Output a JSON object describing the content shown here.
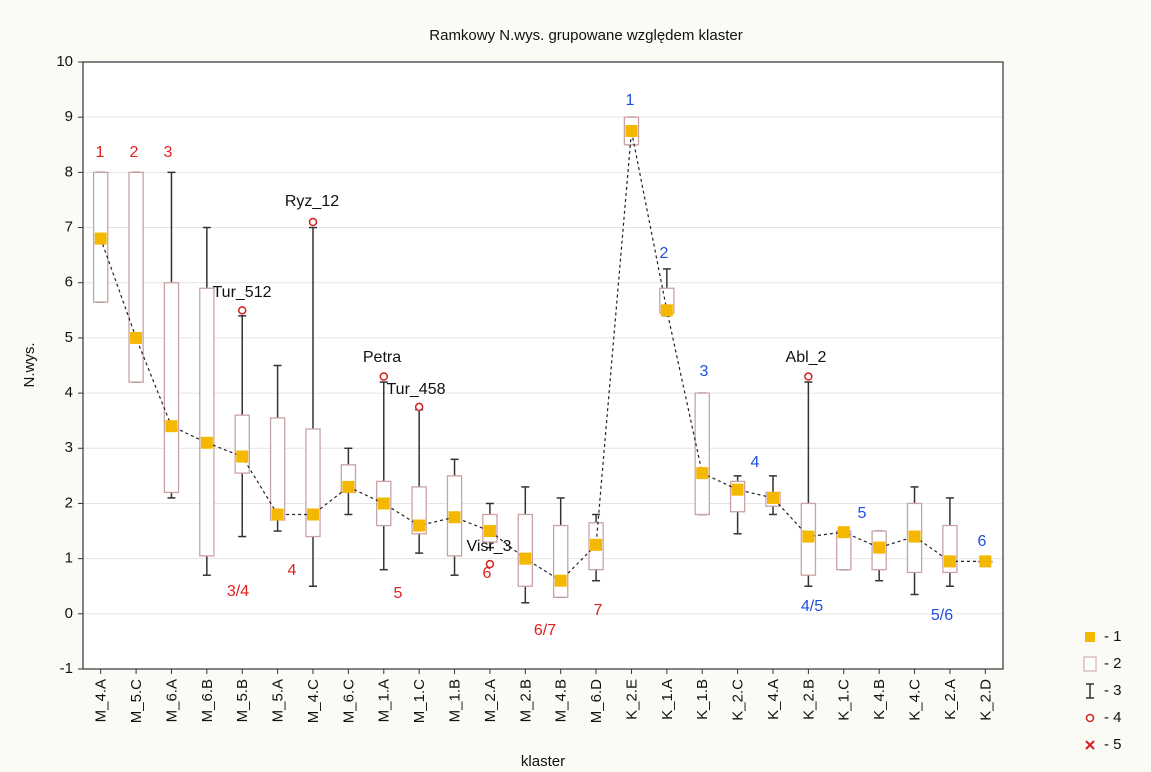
{
  "chart_data": {
    "type": "box",
    "title": "Ramkowy   N.wys. grupowane względem klaster",
    "x_label": "klaster",
    "y_label": "N.wys.",
    "ylim": [
      -1,
      10
    ],
    "yticks": [
      -1,
      0,
      1,
      2,
      3,
      4,
      5,
      6,
      7,
      8,
      9,
      10
    ],
    "grid": true,
    "median_color": "#f5b800",
    "box_color": "#c9a3a3",
    "whisker_color": "#333333",
    "outlier_color": "#d42020",
    "legend_position": "lower right",
    "legend": [
      "- 1",
      "- 2",
      "- 3",
      "- 4",
      "- 5"
    ],
    "categories": [
      "M_4.A",
      "M_5.C",
      "M_6.A",
      "M_6.B",
      "M_5.B",
      "M_5.A",
      "M_4.C",
      "M_6.C",
      "M_1.A",
      "M_1.C",
      "M_1.B",
      "M_2.A",
      "M_2.B",
      "M_4.B",
      "M_6.D",
      "K_2.E",
      "K_1.A",
      "K_1.B",
      "K_2.C",
      "K_4.A",
      "K_2.B",
      "K_1.C",
      "K_4.B",
      "K_4.C",
      "K_2.A",
      "K_2.D"
    ],
    "boxes": [
      {
        "min": 5.65,
        "q1": 5.65,
        "median": 6.8,
        "q3": 8.0,
        "max": 8.0,
        "outliers": []
      },
      {
        "min": 4.2,
        "q1": 4.2,
        "median": 5.0,
        "q3": 8.0,
        "max": 8.0,
        "outliers": []
      },
      {
        "min": 2.1,
        "q1": 2.2,
        "median": 3.4,
        "q3": 6.0,
        "max": 8.0,
        "outliers": []
      },
      {
        "min": 0.7,
        "q1": 1.05,
        "median": 3.1,
        "q3": 5.9,
        "max": 7.0,
        "outliers": []
      },
      {
        "min": 1.4,
        "q1": 2.55,
        "median": 2.85,
        "q3": 3.6,
        "max": 5.4,
        "outliers": [
          5.5
        ]
      },
      {
        "min": 1.5,
        "q1": 1.7,
        "median": 1.8,
        "q3": 3.55,
        "max": 4.5,
        "outliers": []
      },
      {
        "min": 0.5,
        "q1": 1.4,
        "median": 1.8,
        "q3": 3.35,
        "max": 7.0,
        "outliers": [
          7.1
        ]
      },
      {
        "min": 1.8,
        "q1": 2.2,
        "median": 2.3,
        "q3": 2.7,
        "max": 3.0,
        "outliers": []
      },
      {
        "min": 0.8,
        "q1": 1.6,
        "median": 2.0,
        "q3": 2.4,
        "max": 4.2,
        "outliers": [
          4.3
        ]
      },
      {
        "min": 1.1,
        "q1": 1.45,
        "median": 1.6,
        "q3": 2.3,
        "max": 3.7,
        "outliers": [
          3.75
        ]
      },
      {
        "min": 0.7,
        "q1": 1.05,
        "median": 1.75,
        "q3": 2.5,
        "max": 2.8,
        "outliers": []
      },
      {
        "min": 1.2,
        "q1": 1.3,
        "median": 1.5,
        "q3": 1.8,
        "max": 2.0,
        "outliers": [
          0.9
        ]
      },
      {
        "min": 0.2,
        "q1": 0.5,
        "median": 1.0,
        "q3": 1.8,
        "max": 2.3,
        "outliers": []
      },
      {
        "min": 0.3,
        "q1": 0.3,
        "median": 0.6,
        "q3": 1.6,
        "max": 2.1,
        "outliers": []
      },
      {
        "min": 0.6,
        "q1": 0.8,
        "median": 1.25,
        "q3": 1.65,
        "max": 1.8,
        "outliers": []
      },
      {
        "min": 8.5,
        "q1": 8.5,
        "median": 8.75,
        "q3": 9.0,
        "max": 9.0,
        "outliers": []
      },
      {
        "min": 5.4,
        "q1": 5.45,
        "median": 5.5,
        "q3": 5.9,
        "max": 6.25,
        "outliers": []
      },
      {
        "min": 1.8,
        "q1": 1.8,
        "median": 2.55,
        "q3": 4.0,
        "max": 4.0,
        "outliers": []
      },
      {
        "min": 1.45,
        "q1": 1.85,
        "median": 2.25,
        "q3": 2.4,
        "max": 2.5,
        "outliers": []
      },
      {
        "min": 1.8,
        "q1": 1.95,
        "median": 2.1,
        "q3": 2.2,
        "max": 2.5,
        "outliers": []
      },
      {
        "min": 0.5,
        "q1": 0.7,
        "median": 1.4,
        "q3": 2.0,
        "max": 4.2,
        "outliers": [
          4.3
        ]
      },
      {
        "min": 0.8,
        "q1": 0.8,
        "median": 1.48,
        "q3": 1.5,
        "max": 1.5,
        "outliers": []
      },
      {
        "min": 0.6,
        "q1": 0.8,
        "median": 1.2,
        "q3": 1.5,
        "max": 1.5,
        "outliers": []
      },
      {
        "min": 0.35,
        "q1": 0.75,
        "median": 1.4,
        "q3": 2.0,
        "max": 2.3,
        "outliers": []
      },
      {
        "min": 0.5,
        "q1": 0.75,
        "median": 0.95,
        "q3": 1.6,
        "max": 2.1,
        "outliers": []
      },
      {
        "min": 0.95,
        "q1": 0.95,
        "median": 0.95,
        "q3": 0.95,
        "max": 0.95,
        "outliers": []
      }
    ],
    "annotations": [
      {
        "text": "1",
        "color": "#e02020"
      },
      {
        "text": "2",
        "color": "#e02020"
      },
      {
        "text": "3",
        "color": "#e02020"
      },
      {
        "text": "3/4",
        "color": "#e02020"
      },
      {
        "text": "4",
        "color": "#e02020"
      },
      {
        "text": "5",
        "color": "#e02020"
      },
      {
        "text": "6",
        "color": "#e02020"
      },
      {
        "text": "6/7",
        "color": "#e02020"
      },
      {
        "text": "7",
        "color": "#e02020"
      },
      {
        "text": "1",
        "color": "#1f4fe0"
      },
      {
        "text": "2",
        "color": "#1f4fe0"
      },
      {
        "text": "3",
        "color": "#1f4fe0"
      },
      {
        "text": "4",
        "color": "#1f4fe0"
      },
      {
        "text": "4/5",
        "color": "#1f4fe0"
      },
      {
        "text": "5",
        "color": "#1f4fe0"
      },
      {
        "text": "5/6",
        "color": "#1f4fe0"
      },
      {
        "text": "6",
        "color": "#1f4fe0"
      },
      {
        "text": "Ryz_12",
        "color": "#111111"
      },
      {
        "text": "Tur_512",
        "color": "#111111"
      },
      {
        "text": "Petra",
        "color": "#111111"
      },
      {
        "text": "Tur_458",
        "color": "#111111"
      },
      {
        "text": "Visr_3",
        "color": "#111111"
      },
      {
        "text": "Abl_2",
        "color": "#111111"
      }
    ]
  }
}
